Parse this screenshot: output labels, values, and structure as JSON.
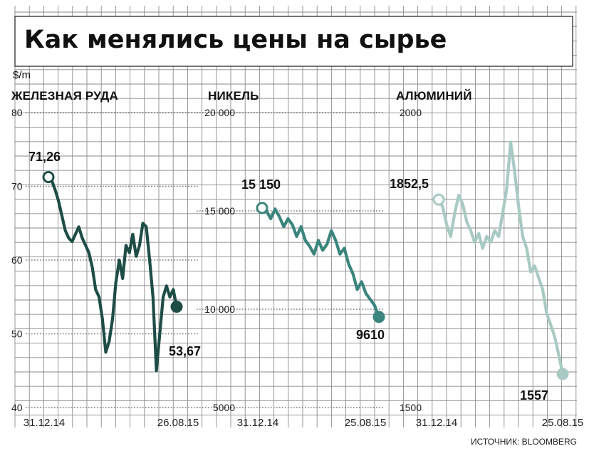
{
  "title": "Как менялись цены на сырье",
  "unit_label": "$/m",
  "source": "ИСТОЧНИК: BLOOMBERG",
  "chart_data": [
    {
      "type": "line",
      "title": "ЖЕЛЕЗНАЯ РУДА",
      "color": "#1e4d47",
      "ylim": [
        40,
        80
      ],
      "yticks": [
        40,
        50,
        60,
        70,
        80
      ],
      "ytick_labels": [
        "40",
        "50",
        "60",
        "70",
        "80"
      ],
      "x_start_label": "31.12.14",
      "x_end_label": "26.08.15",
      "start_value": 71.26,
      "start_label": "71,26",
      "end_value": 53.67,
      "end_label": "53,67",
      "series": [
        {
          "values": [
            71.26,
            70.8,
            69.5,
            68.0,
            66.0,
            64.0,
            63.0,
            62.5,
            63.5,
            64.5,
            63.0,
            62.0,
            61.0,
            59.0,
            56.0,
            55.0,
            52.0,
            47.5,
            49.0,
            52.0,
            57.0,
            60.0,
            57.5,
            62.0,
            61.0,
            63.5,
            60.5,
            62.0,
            65.0,
            64.5,
            60.0,
            55.0,
            45.0,
            50.0,
            55.0,
            56.5,
            55.0,
            56.0,
            53.67
          ]
        }
      ]
    },
    {
      "type": "line",
      "title": "НИКЕЛЬ",
      "color": "#3a857d",
      "ylim": [
        5000,
        20000
      ],
      "yticks": [
        5000,
        10000,
        15000,
        20000
      ],
      "ytick_labels": [
        "5000",
        "10 000",
        "15 000",
        "20 000"
      ],
      "x_start_label": "31.12.14",
      "x_end_label": "25.08.15",
      "start_value": 15150,
      "start_label": "15 150",
      "end_value": 9610,
      "end_label": "9610",
      "series": [
        {
          "values": [
            15150,
            15000,
            14600,
            15100,
            14700,
            14200,
            14600,
            14300,
            13700,
            14200,
            13500,
            13200,
            12800,
            13500,
            13000,
            13300,
            14000,
            13500,
            12800,
            13100,
            12300,
            11800,
            11000,
            11400,
            10800,
            10500,
            10200,
            9610
          ]
        }
      ]
    },
    {
      "type": "line",
      "title": "АЛЮМИНИЙ",
      "color": "#a8cac3",
      "ylim": [
        1500,
        2000
      ],
      "yticks": [
        1500,
        2000
      ],
      "ytick_labels": [
        "1500",
        "2000"
      ],
      "x_start_label": "31.12.14",
      "x_end_label": "25.08.15",
      "start_value": 1852.5,
      "start_label": "1852,5",
      "end_value": 1557,
      "end_label": "1557",
      "series": [
        {
          "values": [
            1852.5,
            1840,
            1810,
            1790,
            1830,
            1860,
            1845,
            1815,
            1800,
            1780,
            1795,
            1770,
            1790,
            1780,
            1800,
            1790,
            1830,
            1870,
            1950,
            1900,
            1840,
            1790,
            1770,
            1730,
            1740,
            1720,
            1700,
            1660,
            1640,
            1620,
            1590,
            1557
          ]
        }
      ]
    }
  ]
}
